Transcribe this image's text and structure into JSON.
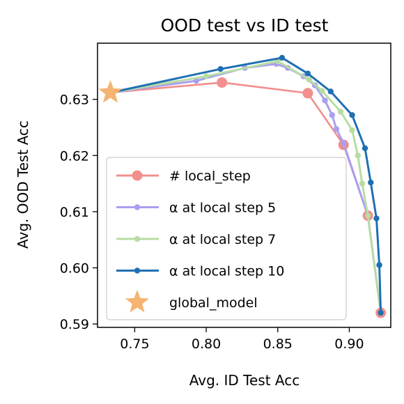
{
  "chart_data": {
    "type": "line",
    "title": "OOD test vs ID test",
    "xlabel": "Avg. ID Test Acc",
    "ylabel": "Avg. OOD Test Acc",
    "xlim": [
      0.724,
      0.929
    ],
    "ylim": [
      0.5894,
      0.64
    ],
    "xticks": [
      "0.75",
      "0.80",
      "0.85",
      "0.90"
    ],
    "yticks": [
      "0.59",
      "0.60",
      "0.61",
      "0.62",
      "0.63"
    ],
    "legend_position": "lower-left",
    "series": [
      {
        "name": "# local_step",
        "color": "#f28e8c",
        "marker": "large-circle",
        "points": [
          [
            0.733,
            0.6312
          ],
          [
            0.811,
            0.633
          ],
          [
            0.871,
            0.6311
          ],
          [
            0.896,
            0.6219
          ],
          [
            0.913,
            0.6093
          ],
          [
            0.922,
            0.592
          ]
        ]
      },
      {
        "name": "α at local step 5",
        "color": "#a99ff0",
        "marker": "small-circle",
        "points": [
          [
            0.733,
            0.6312
          ],
          [
            0.793,
            0.6333
          ],
          [
            0.827,
            0.6356
          ],
          [
            0.849,
            0.6363
          ],
          [
            0.857,
            0.6356
          ],
          [
            0.868,
            0.6341
          ],
          [
            0.876,
            0.6325
          ],
          [
            0.883,
            0.6298
          ],
          [
            0.888,
            0.6272
          ],
          [
            0.891,
            0.6247
          ],
          [
            0.896,
            0.6222
          ],
          [
            0.913,
            0.6093
          ],
          [
            0.922,
            0.592
          ]
        ]
      },
      {
        "name": "α at local step 7",
        "color": "#b7dca2",
        "marker": "small-circle",
        "points": [
          [
            0.733,
            0.6312
          ],
          [
            0.8,
            0.6341
          ],
          [
            0.85,
            0.6368
          ],
          [
            0.872,
            0.6335
          ],
          [
            0.881,
            0.6315
          ],
          [
            0.894,
            0.6278
          ],
          [
            0.902,
            0.6245
          ],
          [
            0.906,
            0.62
          ],
          [
            0.909,
            0.615
          ],
          [
            0.913,
            0.6093
          ],
          [
            0.922,
            0.592
          ]
        ]
      },
      {
        "name": "α at local step 10",
        "color": "#1f70b2",
        "marker": "small-circle",
        "points": [
          [
            0.733,
            0.6312
          ],
          [
            0.81,
            0.6354
          ],
          [
            0.853,
            0.6374
          ],
          [
            0.871,
            0.6346
          ],
          [
            0.887,
            0.6314
          ],
          [
            0.902,
            0.6272
          ],
          [
            0.911,
            0.6213
          ],
          [
            0.915,
            0.6152
          ],
          [
            0.919,
            0.6088
          ],
          [
            0.921,
            0.6005
          ],
          [
            0.922,
            0.592
          ]
        ]
      },
      {
        "name": "global_model",
        "color": "#f5b472",
        "marker": "star",
        "points": [
          [
            0.733,
            0.6312
          ]
        ]
      }
    ]
  }
}
